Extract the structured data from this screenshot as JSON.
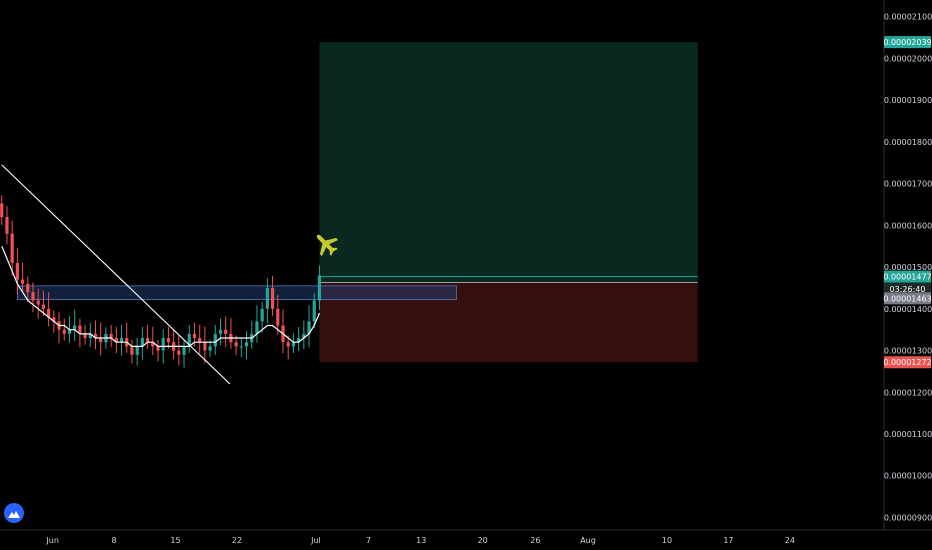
{
  "chart_data": {
    "type": "candlestick",
    "title": "",
    "xlabel": "",
    "ylabel": "",
    "ylim": [
      8.7e-06,
      2.14e-05
    ],
    "y_ticks": [
      "0.00002100",
      "0.00002000",
      "0.00001900",
      "0.00001800",
      "0.00001700",
      "0.00001600",
      "0.00001500",
      "0.00001400",
      "0.00001300",
      "0.00001200",
      "0.00001100",
      "0.00001000",
      "0.00000900"
    ],
    "y_tick_values": [
      2.1e-05,
      2e-05,
      1.9e-05,
      1.8e-05,
      1.7e-05,
      1.6e-05,
      1.5e-05,
      1.4e-05,
      1.3e-05,
      1.2e-05,
      1.1e-05,
      1e-05,
      9e-06
    ],
    "x_ticks": [
      "Jun",
      "8",
      "15",
      "22",
      "Jul",
      "7",
      "13",
      "20",
      "26",
      "Aug",
      "10",
      "17",
      "24"
    ],
    "x_tick_days": [
      0,
      7,
      14,
      21,
      30,
      36,
      42,
      49,
      55,
      61,
      70,
      77,
      84
    ],
    "x_range_days": [
      -6.0,
      94.5
    ],
    "price_close_series": [
      1.62e-05,
      1.58e-05,
      1.51e-05,
      1.47e-05,
      1.46e-05,
      1.44e-05,
      1.42e-05,
      1.41e-05,
      1.4e-05,
      1.38e-05,
      1.37e-05,
      1.35e-05,
      1.34e-05,
      1.35e-05,
      1.36e-05,
      1.34e-05,
      1.33e-05,
      1.34e-05,
      1.33e-05,
      1.32e-05,
      1.34e-05,
      1.33e-05,
      1.32e-05,
      1.33e-05,
      1.31e-05,
      1.29e-05,
      1.31e-05,
      1.33e-05,
      1.32e-05,
      1.31e-05,
      1.3e-05,
      1.33e-05,
      1.32e-05,
      1.3e-05,
      1.29e-05,
      1.31e-05,
      1.34e-05,
      1.33e-05,
      1.32e-05,
      1.3e-05,
      1.31e-05,
      1.34e-05,
      1.35e-05,
      1.34e-05,
      1.32e-05,
      1.31e-05,
      1.31e-05,
      1.32e-05,
      1.34e-05,
      1.37e-05,
      1.4e-05,
      1.45e-05,
      1.4e-05,
      1.36e-05,
      1.32e-05,
      1.31e-05,
      1.32e-05,
      1.33e-05,
      1.34e-05,
      1.37e-05,
      1.42e-05,
      1.48e-05
    ],
    "price_start_day": -5.8,
    "price_end_day": 30.4,
    "moving_average": [
      1.55e-05,
      1.52e-05,
      1.49e-05,
      1.46e-05,
      1.44e-05,
      1.42e-05,
      1.41e-05,
      1.4e-05,
      1.39e-05,
      1.38e-05,
      1.37e-05,
      1.36e-05,
      1.36e-05,
      1.35e-05,
      1.35e-05,
      1.34e-05,
      1.34e-05,
      1.34e-05,
      1.33e-05,
      1.33e-05,
      1.33e-05,
      1.33e-05,
      1.32e-05,
      1.32e-05,
      1.32e-05,
      1.31e-05,
      1.31e-05,
      1.31e-05,
      1.32e-05,
      1.32e-05,
      1.31e-05,
      1.31e-05,
      1.31e-05,
      1.31e-05,
      1.31e-05,
      1.31e-05,
      1.31e-05,
      1.32e-05,
      1.32e-05,
      1.32e-05,
      1.32e-05,
      1.32e-05,
      1.33e-05,
      1.33e-05,
      1.33e-05,
      1.33e-05,
      1.33e-05,
      1.33e-05,
      1.33e-05,
      1.34e-05,
      1.35e-05,
      1.36e-05,
      1.36e-05,
      1.35e-05,
      1.34e-05,
      1.33e-05,
      1.32e-05,
      1.32e-05,
      1.33e-05,
      1.34e-05,
      1.36e-05,
      1.39e-05
    ],
    "trendline": {
      "start": [
        -5.8,
        1.745e-05
      ],
      "end": [
        20.2,
        1.22e-05
      ]
    },
    "support_zone": {
      "from_day": -4.0,
      "to_day": 46.0,
      "top": 1.455e-05,
      "bottom": 1.422e-05
    },
    "position": {
      "entry": 1.463e-05,
      "target": 2.039e-05,
      "stop": 1.272e-05,
      "from_day": 30.4,
      "to_day": 73.5,
      "profit_color": "#0a2a22",
      "loss_color": "#3a0f0f"
    },
    "current_price": 1.477e-05,
    "badges": [
      {
        "label": "0.00002039",
        "value": 2.039e-05,
        "color": "#26a69a"
      },
      {
        "label": "0.00001477",
        "value": 1.477e-05,
        "color": "#26a69a"
      },
      {
        "label": "03:26:40",
        "value": 1.448e-05,
        "color": "#1e2a28"
      },
      {
        "label": "0.00001463",
        "value": 1.425e-05,
        "color": "#787b86"
      },
      {
        "label": "0.00001272",
        "value": 1.272e-05,
        "color": "#ef5350"
      }
    ],
    "colors": {
      "up": "#26a69a",
      "down": "#ef5350",
      "ma": "#ffffff",
      "trendline": "#ffffff",
      "zone": "#1e3a70",
      "annotation": "#c8c832"
    },
    "annotation_icon": "airplane-icon",
    "logo_icon": "tradingview-logo-icon"
  }
}
